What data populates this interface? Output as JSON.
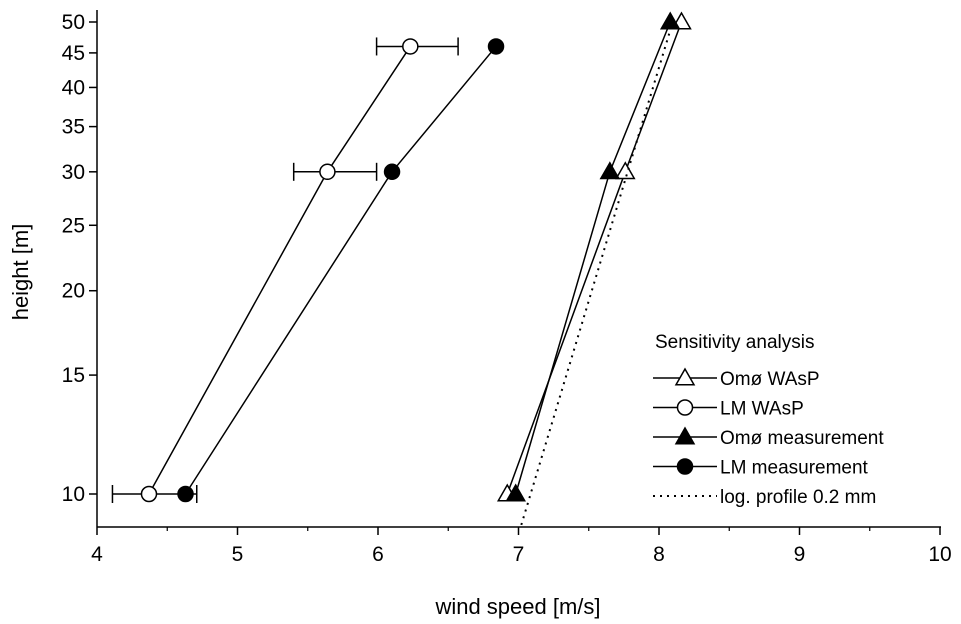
{
  "chart_data": {
    "type": "line",
    "title": "",
    "xlabel": "wind speed [m/s]",
    "ylabel": "height [m]",
    "xlim": [
      4,
      10
    ],
    "ylim": [
      9,
      51
    ],
    "y_scale": "log",
    "x_ticks": [
      "4",
      "5",
      "6",
      "7",
      "8",
      "9",
      "10"
    ],
    "y_ticks": [
      "10",
      "15",
      "20",
      "25",
      "30",
      "35",
      "40",
      "45",
      "50"
    ],
    "grid": false,
    "legend": {
      "title": "Sensitivity analysis",
      "position": "bottom-right"
    },
    "series": [
      {
        "name": "Omø WAsP",
        "marker": "open-triangle",
        "points": [
          {
            "x": 6.92,
            "y": 10
          },
          {
            "x": 7.76,
            "y": 30
          },
          {
            "x": 8.16,
            "y": 50
          }
        ]
      },
      {
        "name": "LM WAsP",
        "marker": "open-circle",
        "points": [
          {
            "x": 4.37,
            "y": 10,
            "err_low": 4.11,
            "err_high": 4.71
          },
          {
            "x": 5.64,
            "y": 30,
            "err_low": 5.4,
            "err_high": 5.99
          },
          {
            "x": 6.23,
            "y": 46,
            "err_low": 5.99,
            "err_high": 6.57
          }
        ]
      },
      {
        "name": "Omø measurement",
        "marker": "filled-triangle",
        "points": [
          {
            "x": 6.98,
            "y": 10
          },
          {
            "x": 7.65,
            "y": 30
          },
          {
            "x": 8.08,
            "y": 50
          }
        ]
      },
      {
        "name": "LM measurement",
        "marker": "filled-circle",
        "points": [
          {
            "x": 4.63,
            "y": 10
          },
          {
            "x": 6.1,
            "y": 30
          },
          {
            "x": 6.84,
            "y": 46
          }
        ]
      },
      {
        "name": "log. profile 0.2 mm",
        "marker": "none",
        "line": "dotted",
        "points": [
          {
            "x": 7.02,
            "y": 9
          },
          {
            "x": 8.11,
            "y": 51
          }
        ]
      }
    ]
  }
}
